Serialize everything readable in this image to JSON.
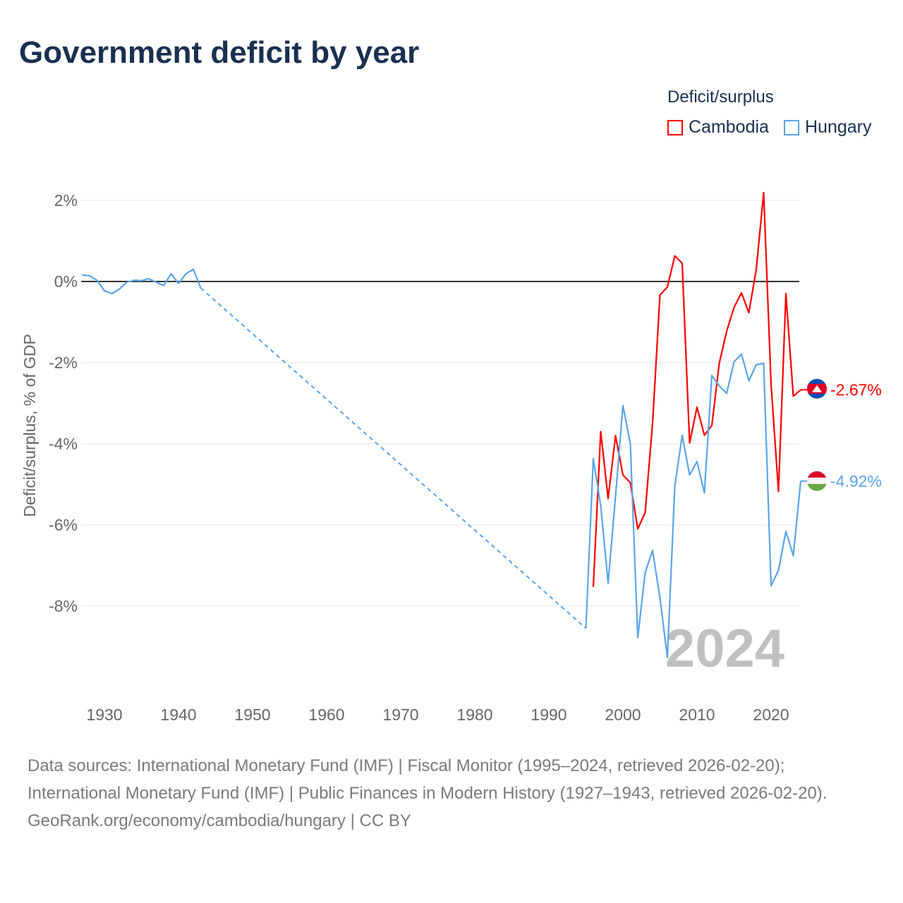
{
  "title": "Government deficit by year",
  "legend": {
    "title": "Deficit/surplus",
    "items": [
      {
        "name": "Cambodia",
        "color": "#ff0000"
      },
      {
        "name": "Hungary",
        "color": "#5ba4e8"
      }
    ]
  },
  "sources": {
    "line1": "Data sources: International Monetary Fund (IMF) | Fiscal Monitor (1995–2024, retrieved 2026-02-20); International Monetary Fund (IMF) | Public Finances in Modern History (1927–1943, retrieved 2026-02-20).",
    "line2": "GeoRank.org/economy/cambodia/hungary | CC BY"
  },
  "chart_data": {
    "type": "line",
    "title": "Government deficit by year",
    "ylabel": "Deficit/surplus, % of GDP",
    "xlabel": "",
    "xlim": [
      1927,
      2024
    ],
    "ylim": [
      -10,
      2.5
    ],
    "xticks": [
      1930,
      1940,
      1950,
      1960,
      1970,
      1980,
      1990,
      2000,
      2010,
      2020
    ],
    "yticks": [
      2,
      0,
      -2,
      -4,
      -6,
      -8
    ],
    "ytick_labels": [
      "2%",
      "0%",
      "-2%",
      "-4%",
      "-6%",
      "-8%"
    ],
    "year_watermark": "2024",
    "series": [
      {
        "name": "Cambodia",
        "color": "#ff0000",
        "end_label": "-2.67%",
        "x": [
          1996,
          1997,
          1998,
          1999,
          2000,
          2001,
          2002,
          2003,
          2004,
          2005,
          2006,
          2007,
          2008,
          2009,
          2010,
          2011,
          2012,
          2013,
          2014,
          2015,
          2016,
          2017,
          2018,
          2019,
          2020,
          2021,
          2022,
          2023,
          2024
        ],
        "values": [
          -7.53,
          -3.7,
          -5.35,
          -3.8,
          -4.77,
          -4.96,
          -6.1,
          -5.7,
          -3.5,
          -0.33,
          -0.14,
          0.63,
          0.45,
          -3.98,
          -3.1,
          -3.79,
          -3.55,
          -2.02,
          -1.23,
          -0.64,
          -0.28,
          -0.77,
          0.3,
          2.19,
          -2.54,
          -5.18,
          -0.3,
          -2.83,
          -2.67
        ]
      },
      {
        "name": "Hungary",
        "color": "#5ba4e8",
        "end_label": "-4.92%",
        "x": [
          1927,
          1928,
          1929,
          1930,
          1931,
          1932,
          1933,
          1934,
          1935,
          1936,
          1937,
          1938,
          1939,
          1940,
          1941,
          1942,
          1943,
          1995,
          1996,
          1997,
          1998,
          1999,
          2000,
          2001,
          2002,
          2003,
          2004,
          2005,
          2006,
          2007,
          2008,
          2009,
          2010,
          2011,
          2012,
          2013,
          2014,
          2015,
          2016,
          2017,
          2018,
          2019,
          2020,
          2021,
          2022,
          2023,
          2024
        ],
        "values": [
          0.16,
          0.14,
          0.03,
          -0.23,
          -0.3,
          -0.19,
          -0.02,
          0.03,
          0.02,
          0.07,
          -0.02,
          -0.1,
          0.19,
          -0.05,
          0.19,
          0.3,
          -0.16,
          -8.55,
          -4.37,
          -5.53,
          -7.43,
          -5.3,
          -3.06,
          -4.0,
          -8.78,
          -7.18,
          -6.63,
          -7.8,
          -9.27,
          -5.06,
          -3.79,
          -4.77,
          -4.44,
          -5.21,
          -2.32,
          -2.57,
          -2.76,
          -1.98,
          -1.79,
          -2.45,
          -2.05,
          -2.02,
          -7.5,
          -7.12,
          -6.16,
          -6.76,
          -4.92
        ]
      }
    ]
  }
}
